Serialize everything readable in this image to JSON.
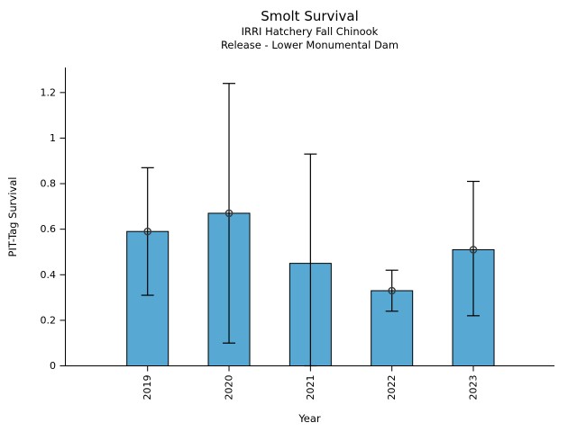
{
  "chart_data": {
    "type": "bar",
    "title": "Smolt Survival",
    "subtitle_line1": "IRRI Hatchery Fall Chinook",
    "subtitle_line2": "Release - Lower Monumental Dam",
    "xlabel": "Year",
    "ylabel": "PIT-Tag Survival",
    "categories": [
      "2019",
      "2020",
      "2021",
      "2022",
      "2023"
    ],
    "values": [
      0.59,
      0.67,
      0.45,
      0.33,
      0.51
    ],
    "ci_low": [
      0.31,
      0.1,
      0.0,
      0.24,
      0.22
    ],
    "ci_high": [
      0.87,
      1.24,
      0.93,
      0.42,
      0.81
    ],
    "point_marker_shown": [
      true,
      true,
      false,
      true,
      true
    ],
    "ylim": [
      0,
      1.31
    ],
    "yticks": [
      0,
      0.2,
      0.4,
      0.6,
      0.8,
      1,
      1.2
    ],
    "ytick_labels": [
      "0",
      "0.2",
      "0.4",
      "0.6",
      "0.8",
      "1",
      "1.2"
    ],
    "grid": false,
    "legend": null,
    "colors": {
      "bar_fill": "#57a9d4",
      "bar_edge": "#000000",
      "error_bar": "#000000",
      "marker_edge": "#3a3a3a",
      "axis": "#000000",
      "background": "#ffffff"
    }
  }
}
